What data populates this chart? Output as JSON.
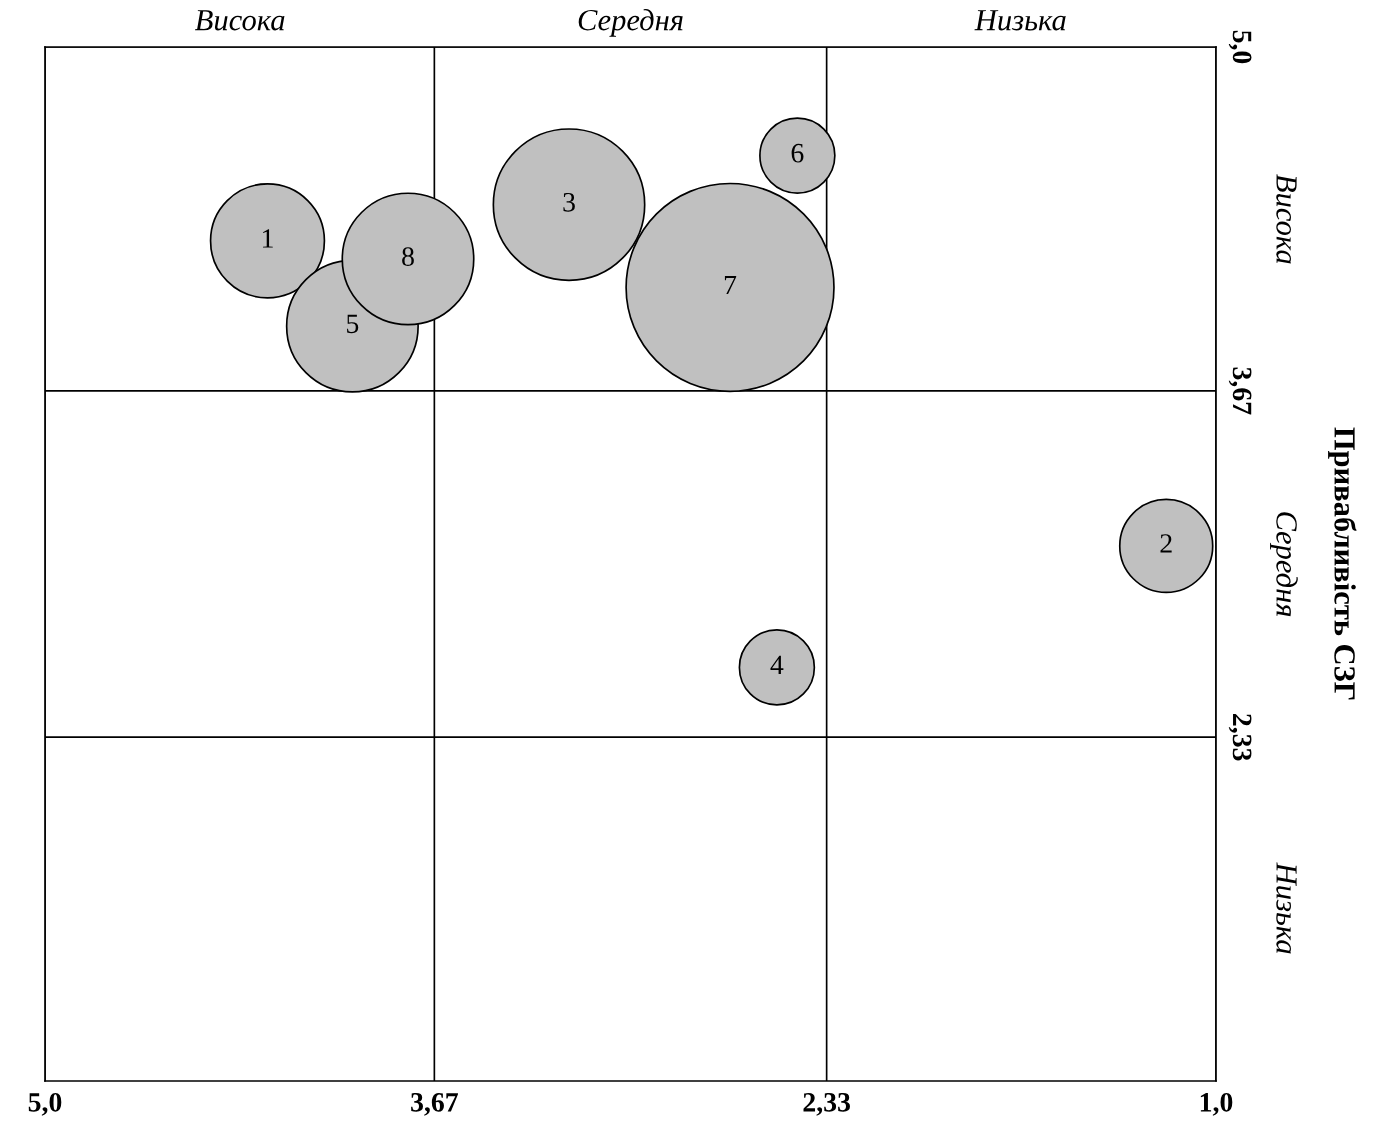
{
  "chart_data": {
    "type": "bubble",
    "ylabel": "Привабливість СЗГ",
    "x": [
      4.24,
      1.17,
      3.21,
      2.5,
      3.95,
      2.43,
      2.66,
      3.76
    ],
    "values": [
      4.25,
      3.07,
      4.39,
      2.6,
      3.92,
      4.58,
      4.07,
      4.18
    ],
    "sizes": [
      0.3,
      0.2,
      0.53,
      0.13,
      0.4,
      0.13,
      1,
      0.4
    ],
    "annotations": [
      {
        "text": "1",
        "x": 4.24,
        "y": 4.25
      },
      {
        "text": "2",
        "x": 1.17,
        "y": 3.07
      },
      {
        "text": "3",
        "x": 3.21,
        "y": 4.39
      },
      {
        "text": "4",
        "x": 2.5,
        "y": 2.6
      },
      {
        "text": "5",
        "x": 3.95,
        "y": 3.92
      },
      {
        "text": "6",
        "x": 2.43,
        "y": 4.58
      },
      {
        "text": "7",
        "x": 2.66,
        "y": 4.07
      },
      {
        "text": "8",
        "x": 3.76,
        "y": 4.18
      },
      "Висока",
      "Середня",
      "Низька",
      "Висока",
      "Середня",
      "Низька"
    ],
    "color": "#c0c0c0",
    "xlim": [
      5,
      1
    ],
    "ylim": [
      1,
      5
    ],
    "xticks": [
      {
        "value": 5,
        "label": "5,0"
      },
      {
        "value": 3.67,
        "label": "3,67"
      },
      {
        "value": 2.33,
        "label": "2,33"
      },
      {
        "value": 1,
        "label": "1,0"
      }
    ],
    "yticks": [
      {
        "value": 5,
        "label": "5,0"
      },
      {
        "value": 3.67,
        "label": "3,67"
      },
      {
        "value": 2.33,
        "label": "2,33"
      }
    ],
    "grid": true,
    "legend": false
  }
}
